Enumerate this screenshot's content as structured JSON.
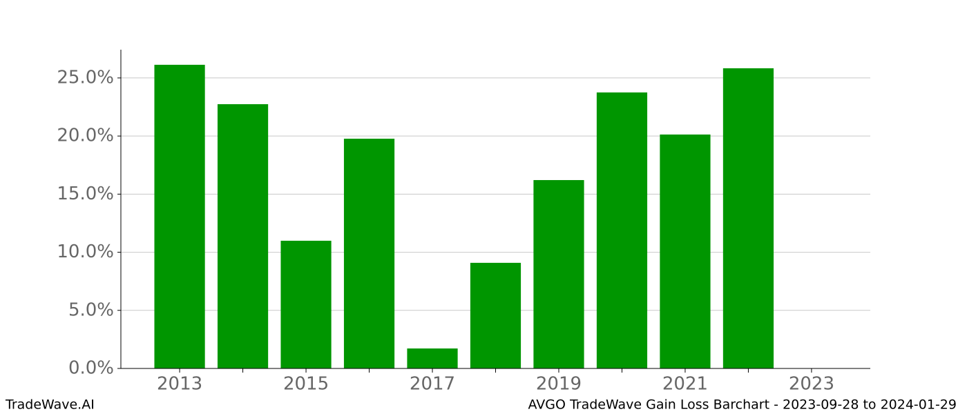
{
  "chart_data": {
    "type": "bar",
    "footer_left": "TradeWave.AI",
    "footer_right": "AVGO TradeWave Gain Loss Barchart - 2023-09-28 to 2024-01-29",
    "x": [
      2013,
      2014,
      2015,
      2016,
      2017,
      2018,
      2019,
      2020,
      2021,
      2022
    ],
    "values": [
      26.13,
      22.74,
      10.99,
      19.77,
      1.72,
      9.09,
      16.21,
      23.75,
      20.13,
      25.83
    ],
    "color": "#009600",
    "xlim": [
      2012.07,
      2023.93
    ],
    "xticks": [
      2013,
      2015,
      2017,
      2019,
      2021,
      2023
    ],
    "xminorticks": [
      2014,
      2016,
      2018,
      2020,
      2022
    ],
    "ylim": [
      0,
      27.43
    ],
    "yticks": [
      {
        "value": 0,
        "label": "0.0%"
      },
      {
        "value": 5,
        "label": "5.0%"
      },
      {
        "value": 10,
        "label": "10.0%"
      },
      {
        "value": 15,
        "label": "15.0%"
      },
      {
        "value": 20,
        "label": "20.0%"
      },
      {
        "value": 25,
        "label": "25.0%"
      }
    ],
    "grid": true
  }
}
